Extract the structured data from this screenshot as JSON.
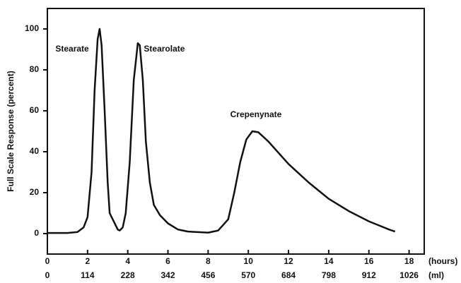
{
  "chart_data": {
    "type": "line",
    "y_label": "Full Scale Response (percent)",
    "x_label": "(hours)",
    "x2_label": "(ml)",
    "x": [
      0,
      1,
      1.5,
      1.8,
      2.0,
      2.2,
      2.35,
      2.5,
      2.6,
      2.7,
      2.85,
      3.0,
      3.1,
      3.3,
      3.5,
      3.6,
      3.75,
      3.9,
      4.1,
      4.3,
      4.5,
      4.6,
      4.75,
      4.9,
      5.1,
      5.3,
      5.6,
      6,
      6.5,
      7,
      8,
      8.5,
      9,
      9.3,
      9.6,
      9.9,
      10.2,
      10.5,
      11,
      12,
      13,
      14,
      15,
      16,
      16.5,
      17,
      17.3
    ],
    "series": [
      {
        "color": "#111111",
        "values": [
          0.3,
          0.3,
          0.8,
          3,
          8,
          30,
          70,
          95,
          100,
          92,
          60,
          25,
          10,
          6,
          2,
          1.5,
          3,
          10,
          35,
          75,
          93,
          92,
          75,
          45,
          25,
          14,
          9,
          5,
          2,
          1,
          0.5,
          1.5,
          7,
          20,
          35,
          46,
          50,
          49.5,
          45,
          34,
          25,
          17,
          11,
          6,
          4,
          2,
          1
        ]
      }
    ],
    "xlim": [
      0,
      19
    ],
    "xticks": [
      0,
      2,
      4,
      6,
      8,
      10,
      12,
      14,
      16,
      18
    ],
    "x2lim": [
      0,
      1083
    ],
    "x2ticks": [
      0,
      114,
      228,
      342,
      456,
      570,
      684,
      798,
      912,
      1026
    ],
    "ylim": [
      -10,
      110
    ],
    "yticks": [
      0,
      20,
      40,
      60,
      80,
      100
    ],
    "annotations": [
      {
        "text": "Stearate",
        "x": 0.4,
        "y": 90
      },
      {
        "text": "Stearolate",
        "x": 4.8,
        "y": 90
      },
      {
        "text": "Crepenynate",
        "x": 9.1,
        "y": 58
      }
    ]
  }
}
